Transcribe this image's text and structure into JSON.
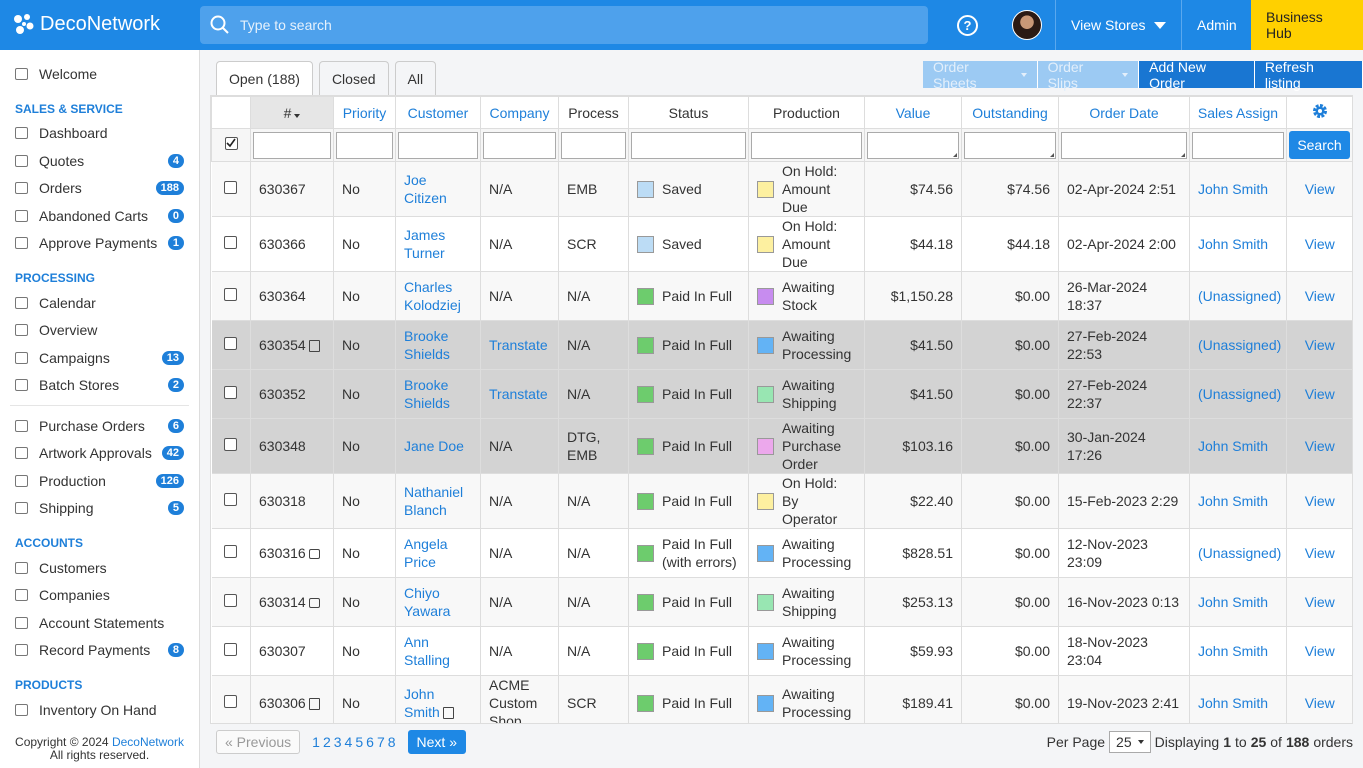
{
  "header": {
    "logo": "DecoNetwork",
    "search_placeholder": "Type to search",
    "view_stores": "View Stores",
    "admin": "Admin",
    "business_hub": "Business Hub"
  },
  "sidebar": {
    "welcome": "Welcome",
    "sections": [
      {
        "title": "SALES & SERVICE",
        "groups": [
          [
            {
              "label": "Dashboard"
            },
            {
              "label": "Quotes",
              "badge": 4
            },
            {
              "label": "Orders",
              "badge": 188
            },
            {
              "label": "Abandoned Carts",
              "badge": 0
            },
            {
              "label": "Approve Payments",
              "badge": 1
            }
          ]
        ]
      },
      {
        "title": "PROCESSING",
        "groups": [
          [
            {
              "label": "Calendar"
            },
            {
              "label": "Overview"
            },
            {
              "label": "Campaigns",
              "badge": 13
            },
            {
              "label": "Batch Stores",
              "badge": 2
            }
          ],
          [
            {
              "label": "Purchase Orders",
              "badge": 6
            },
            {
              "label": "Artwork Approvals",
              "badge": 42
            },
            {
              "label": "Production",
              "badge": 126
            },
            {
              "label": "Shipping",
              "badge": 5
            }
          ]
        ]
      },
      {
        "title": "ACCOUNTS",
        "groups": [
          [
            {
              "label": "Customers"
            },
            {
              "label": "Companies"
            },
            {
              "label": "Account Statements"
            },
            {
              "label": "Record Payments",
              "badge": 8
            }
          ]
        ]
      },
      {
        "title": "PRODUCTS",
        "groups": [
          [
            {
              "label": "Inventory On Hand"
            }
          ]
        ]
      }
    ],
    "footer": {
      "copyright": "Copyright © 2024",
      "link": "DecoNetwork",
      "rights": "All rights reserved."
    }
  },
  "tabs": [
    {
      "label": "Open",
      "count": "(188)"
    },
    {
      "label": "Closed"
    },
    {
      "label": "All"
    }
  ],
  "actions": {
    "order_sheets": "Order Sheets",
    "order_slips": "Order Slips",
    "add_order": "Add New Order",
    "refresh": "Refresh listing"
  },
  "table": {
    "columns": [
      {
        "label": "#",
        "sortable": false,
        "filter": "text"
      },
      {
        "label": "Priority",
        "sortable": true,
        "filter": "select"
      },
      {
        "label": "Customer",
        "sortable": true,
        "filter": "text"
      },
      {
        "label": "Company",
        "sortable": true,
        "filter": "text"
      },
      {
        "label": "Process",
        "sortable": false,
        "filter": "select"
      },
      {
        "label": "Status",
        "sortable": false,
        "filter": "select"
      },
      {
        "label": "Production",
        "sortable": false,
        "filter": "select"
      },
      {
        "label": "Value",
        "sortable": true,
        "filter": "area"
      },
      {
        "label": "Outstanding",
        "sortable": true,
        "filter": "area"
      },
      {
        "label": "Order Date",
        "sortable": true,
        "filter": "area"
      },
      {
        "label": "Sales Assign",
        "sortable": true,
        "filter": "select"
      }
    ],
    "search_button": "Search",
    "rows": [
      {
        "id": "630367",
        "priority": "No",
        "customer": "Joe Citizen",
        "company": "N/A",
        "process": "EMB",
        "status": "Saved",
        "status_color": "#bcdcf5",
        "production": "On Hold: Amount Due",
        "production_color": "#fdf0a0",
        "value": "$74.56",
        "outstanding": "$74.56",
        "date": "02-Apr-2024 2:51",
        "sales": "John Smith",
        "view": "View"
      },
      {
        "id": "630366",
        "priority": "No",
        "customer": "James Turner",
        "company": "N/A",
        "process": "SCR",
        "status": "Saved",
        "status_color": "#bcdcf5",
        "production": "On Hold: Amount Due",
        "production_color": "#fdf0a0",
        "value": "$44.18",
        "outstanding": "$44.18",
        "date": "02-Apr-2024 2:00",
        "sales": "John Smith",
        "view": "View"
      },
      {
        "id": "630364",
        "priority": "No",
        "customer": "Charles Kolodziej",
        "company": "N/A",
        "process": "N/A",
        "status": "Paid In Full",
        "status_color": "#6dcc6d",
        "production": "Awaiting Stock",
        "production_color": "#c78cef",
        "value": "$1,150.28",
        "outstanding": "$0.00",
        "date": "26-Mar-2024 18:37",
        "sales": "(Unassigned)",
        "view": "View"
      },
      {
        "id": "630354",
        "icon": "note",
        "highlight": true,
        "priority": "No",
        "customer": "Brooke Shields",
        "company": "Transtate",
        "company_link": true,
        "process": "N/A",
        "status": "Paid In Full",
        "status_color": "#6dcc6d",
        "production": "Awaiting Processing",
        "production_color": "#63b3f5",
        "value": "$41.50",
        "outstanding": "$0.00",
        "date": "27-Feb-2024 22:53",
        "sales": "(Unassigned)",
        "view": "View"
      },
      {
        "id": "630352",
        "highlight": true,
        "priority": "No",
        "customer": "Brooke Shields",
        "company": "Transtate",
        "company_link": true,
        "process": "N/A",
        "status": "Paid In Full",
        "status_color": "#6dcc6d",
        "production": "Awaiting Shipping",
        "production_color": "#98e6b2",
        "value": "$41.50",
        "outstanding": "$0.00",
        "date": "27-Feb-2024 22:37",
        "sales": "(Unassigned)",
        "view": "View"
      },
      {
        "id": "630348",
        "highlight": true,
        "priority": "No",
        "customer": "Jane Doe",
        "company": "N/A",
        "process": "DTG, EMB",
        "status": "Paid In Full",
        "status_color": "#6dcc6d",
        "production": "Awaiting Purchase Order",
        "production_color": "#eca8ec",
        "value": "$103.16",
        "outstanding": "$0.00",
        "date": "30-Jan-2024 17:26",
        "sales": "John Smith",
        "view": "View"
      },
      {
        "id": "630318",
        "priority": "No",
        "customer": "Nathaniel Blanch",
        "company": "N/A",
        "process": "N/A",
        "status": "Paid In Full",
        "status_color": "#6dcc6d",
        "production": "On Hold: By Operator",
        "production_color": "#fdf0a0",
        "value": "$22.40",
        "outstanding": "$0.00",
        "date": "15-Feb-2023 2:29",
        "sales": "John Smith",
        "view": "View"
      },
      {
        "id": "630316",
        "icon": "print",
        "priority": "No",
        "customer": "Angela Price",
        "company": "N/A",
        "process": "N/A",
        "status": "Paid In Full (with errors)",
        "status_color": "#6dcc6d",
        "production": "Awaiting Processing",
        "production_color": "#63b3f5",
        "value": "$828.51",
        "outstanding": "$0.00",
        "date": "12-Nov-2023 23:09",
        "sales": "(Unassigned)",
        "view": "View"
      },
      {
        "id": "630314",
        "icon": "print",
        "priority": "No",
        "customer": "Chiyo Yawara",
        "company": "N/A",
        "process": "N/A",
        "status": "Paid In Full",
        "status_color": "#6dcc6d",
        "production": "Awaiting Shipping",
        "production_color": "#98e6b2",
        "value": "$253.13",
        "outstanding": "$0.00",
        "date": "16-Nov-2023 0:13",
        "sales": "John Smith",
        "view": "View"
      },
      {
        "id": "630307",
        "priority": "No",
        "customer": "Ann Stalling",
        "company": "N/A",
        "process": "N/A",
        "status": "Paid In Full",
        "status_color": "#6dcc6d",
        "production": "Awaiting Processing",
        "production_color": "#63b3f5",
        "value": "$59.93",
        "outstanding": "$0.00",
        "date": "18-Nov-2023 23:04",
        "sales": "John Smith",
        "view": "View"
      },
      {
        "id": "630306",
        "icon": "note",
        "priority": "No",
        "customer": "John Smith",
        "customer_icon": "note",
        "company": "ACME Custom Shop",
        "process": "SCR",
        "status": "Paid In Full",
        "status_color": "#6dcc6d",
        "production": "Awaiting Processing",
        "production_color": "#63b3f5",
        "value": "$189.41",
        "outstanding": "$0.00",
        "date": "19-Nov-2023 2:41",
        "sales": "John Smith",
        "view": "View"
      }
    ]
  },
  "pagination": {
    "previous": "« Previous",
    "pages": [
      1,
      2,
      3,
      4,
      5,
      6,
      7,
      8
    ],
    "next": "Next »",
    "per_page_label": "Per Page",
    "per_page": 25,
    "display": {
      "prefix": "Displaying",
      "from": 1,
      "to_word": "to",
      "to": 25,
      "of_word": "of",
      "total": 188,
      "suffix": "orders"
    }
  }
}
